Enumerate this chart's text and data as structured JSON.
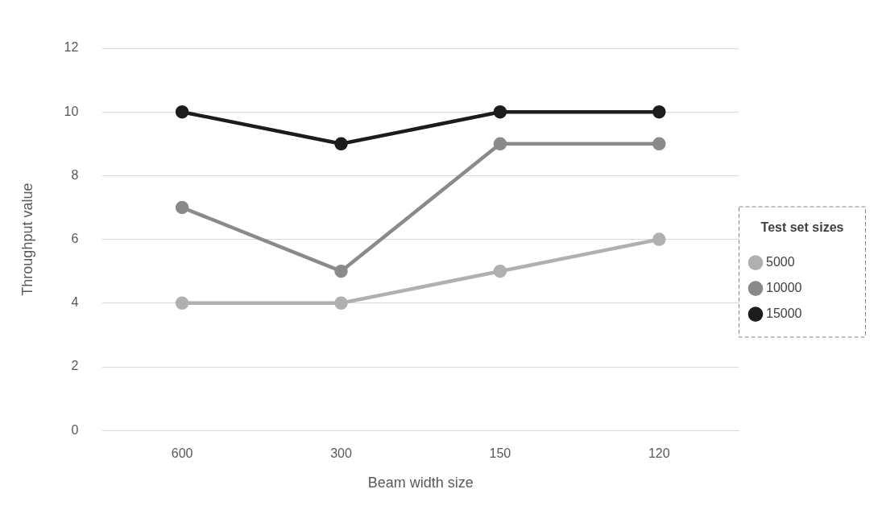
{
  "chart_data": {
    "type": "line",
    "xlabel": "Beam width size",
    "ylabel": "Throughput value",
    "legend_title": "Test set sizes",
    "categories": [
      "600",
      "300",
      "150",
      "120"
    ],
    "series": [
      {
        "name": "5000",
        "color": "#b0b0b0",
        "values": [
          4,
          4,
          5,
          6
        ]
      },
      {
        "name": "10000",
        "color": "#8a8a8a",
        "values": [
          7,
          5,
          9,
          9
        ]
      },
      {
        "name": "15000",
        "color": "#1c1c1c",
        "values": [
          10,
          9,
          10,
          10
        ]
      }
    ],
    "ylim": [
      0,
      12
    ],
    "yticks": [
      0,
      2,
      4,
      6,
      8,
      10,
      12
    ],
    "grid": "y",
    "legend": "right",
    "marker": "circle",
    "line_style": "solid"
  }
}
